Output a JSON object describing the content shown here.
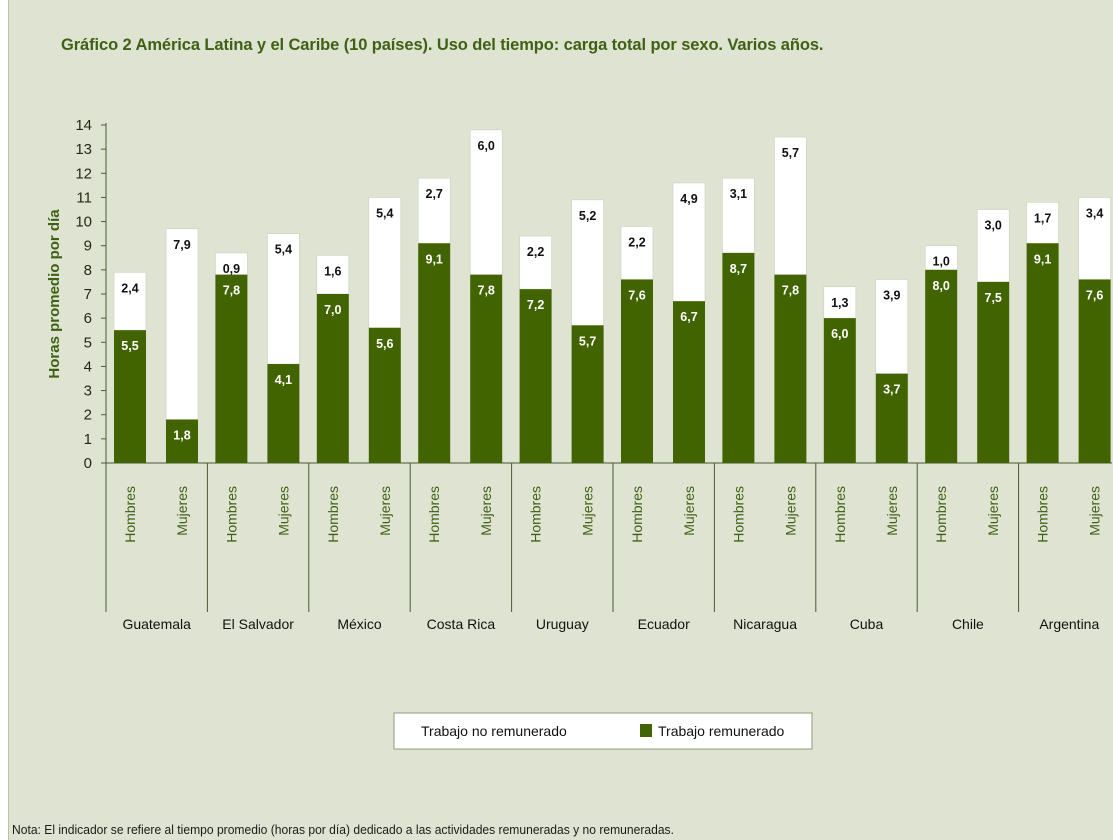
{
  "chart_data": {
    "type": "bar",
    "stacked": true,
    "title": "Gráfico 2 América Latina y el Caribe (10 países). Uso del tiempo: carga total por sexo. Varios años.",
    "ylabel": "Horas promedio por día",
    "ylim": [
      0,
      14
    ],
    "yticks": [
      0,
      1,
      2,
      3,
      4,
      5,
      6,
      7,
      8,
      9,
      10,
      11,
      12,
      13,
      14
    ],
    "groups": [
      "Guatemala",
      "El Salvador",
      "México",
      "Costa Rica",
      "Uruguay",
      "Ecuador",
      "Nicaragua",
      "Cuba",
      "Chile",
      "Argentina"
    ],
    "subcategories": [
      "Hombres",
      "Mujeres"
    ],
    "categories": [
      "Guatemala Hombres",
      "Guatemala Mujeres",
      "El Salvador Hombres",
      "El Salvador Mujeres",
      "México Hombres",
      "México Mujeres",
      "Costa Rica Hombres",
      "Costa Rica Mujeres",
      "Uruguay Hombres",
      "Uruguay Mujeres",
      "Ecuador Hombres",
      "Ecuador Mujeres",
      "Nicaragua Hombres",
      "Nicaragua Mujeres",
      "Cuba Hombres",
      "Cuba Mujeres",
      "Chile Hombres",
      "Chile Mujeres",
      "Argentina Hombres",
      "Argentina Mujeres"
    ],
    "series": [
      {
        "name": "Trabajo remunerado",
        "color": "#426400",
        "values": [
          5.5,
          1.8,
          7.8,
          4.1,
          7.0,
          5.6,
          9.1,
          7.8,
          7.2,
          5.7,
          7.6,
          6.7,
          8.7,
          7.8,
          6.0,
          3.7,
          8.0,
          7.5,
          9.1,
          7.6
        ],
        "labels": [
          "5,5",
          "1,8",
          "7,8",
          "4,1",
          "7,0",
          "5,6",
          "9,1",
          "7,8",
          "7,2",
          "5,7",
          "7,6",
          "6,7",
          "8,7",
          "7,8",
          "6,0",
          "3,7",
          "8,0",
          "7,5",
          "9,1",
          "7,6"
        ]
      },
      {
        "name": "Trabajo no remunerado",
        "color": "#ffffff",
        "values": [
          2.4,
          7.9,
          0.9,
          5.4,
          1.6,
          5.4,
          2.7,
          6.0,
          2.2,
          5.2,
          2.2,
          4.9,
          3.1,
          5.7,
          1.3,
          3.9,
          1.0,
          3.0,
          1.7,
          3.4
        ],
        "labels": [
          "2,4",
          "7,9",
          "0,9",
          "5,4",
          "1,6",
          "5,4",
          "2,7",
          "6,0",
          "2,2",
          "5,2",
          "2,2",
          "4,9",
          "3,1",
          "5,7",
          "1,3",
          "3,9",
          "1,0",
          "3,0",
          "1,7",
          "3,4"
        ]
      }
    ],
    "legend": {
      "position": "bottom-center",
      "entries": [
        "Trabajo no remunerado",
        "Trabajo remunerado"
      ]
    },
    "grid": false
  },
  "footnote": "Nota: El indicador se refiere al tiempo promedio (horas por día) dedicado a las actividades remuneradas y no remuneradas."
}
